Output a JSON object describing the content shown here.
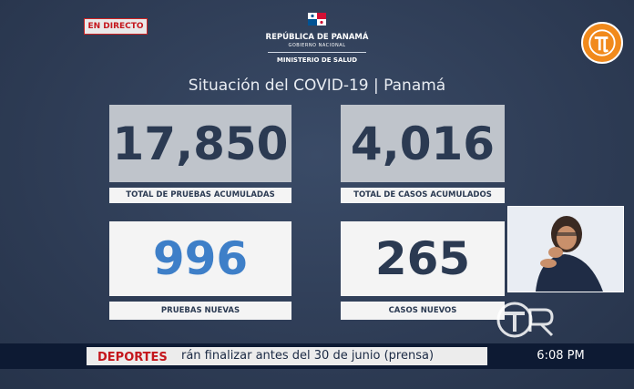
{
  "live_badge": "EN DIRECTO",
  "government": {
    "name": "REPÚBLICA DE PANAMÁ",
    "subtitle": "GOBIERNO NACIONAL",
    "ministry": "MINISTERIO DE SALUD"
  },
  "title": "Situación del COVID-19 | Panamá",
  "stats": {
    "total_tests": {
      "value": "17,850",
      "label": "TOTAL DE PRUEBAS ACUMULADAS"
    },
    "total_cases": {
      "value": "4,016",
      "label": "TOTAL DE CASOS ACUMULADOS"
    },
    "new_tests": {
      "value": "996",
      "label": "PRUEBAS NUEVAS"
    },
    "new_cases": {
      "value": "265",
      "label": "CASOS NUEVOS"
    }
  },
  "ticker": {
    "section": "DEPORTES",
    "headline": "rán finalizar antes del 30 de junio (prensa)",
    "time": "6:08 PM"
  },
  "colors": {
    "background": "#2f3e57",
    "accent_blue": "#3e7fc8",
    "brand_orange": "#f18a1c",
    "live_red": "#c4161c"
  },
  "icons": {
    "channel_logo": "tvn-logo-icon",
    "watermark": "tvr-watermark-icon",
    "flag": "panama-flag-icon"
  }
}
